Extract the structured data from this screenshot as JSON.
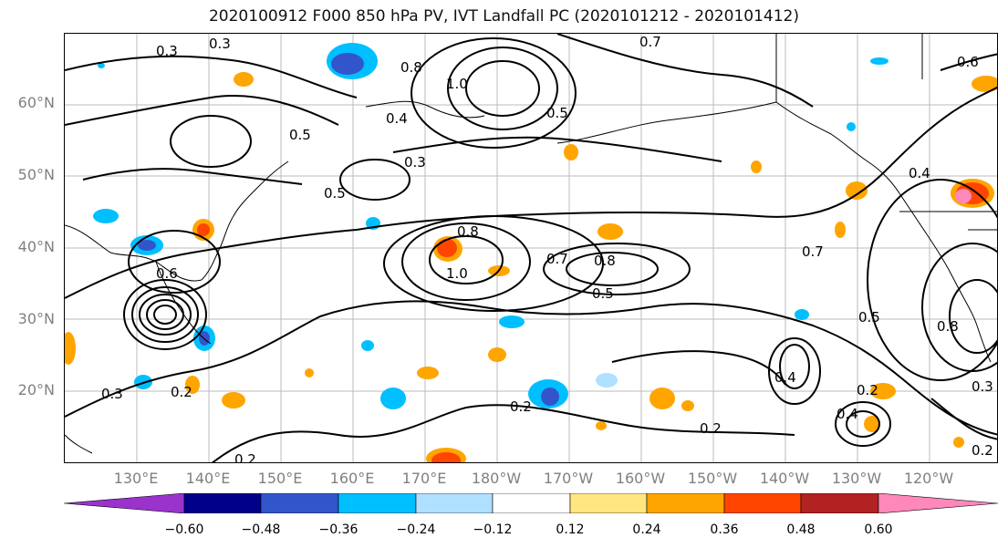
{
  "title": "2020100912 F000 850 hPa PV, IVT Landfall PC (2020101212 - 2020101412)",
  "latitude_labels": [
    "60°N",
    "50°N",
    "40°N",
    "30°N",
    "20°N"
  ],
  "longitude_labels": [
    "130°E",
    "140°E",
    "150°E",
    "160°E",
    "170°E",
    "180°W",
    "170°W",
    "160°W",
    "150°W",
    "140°W",
    "130°W",
    "120°W"
  ],
  "contour_labels": [
    "0.3",
    "0.3",
    "0.8",
    "1.0",
    "0.7",
    "0.6",
    "0.5",
    "0.5",
    "0.4",
    "0.3",
    "0.5",
    "0.4",
    "0.8",
    "1.0",
    "0.8",
    "0.7",
    "0.5",
    "0.7",
    "0.8",
    "0.5",
    "0.6",
    "0.2",
    "0.2",
    "0.3",
    "0.4",
    "0.2",
    "0.4",
    "0.3",
    "0.2",
    "0.2",
    "0.2"
  ],
  "colorbar": {
    "colors": [
      "#9933cc",
      "#00008b",
      "#3355cc",
      "#00bfff",
      "#b0e0ff",
      "#ffffff",
      "#ffe680",
      "#ffa500",
      "#ff4500",
      "#b22222",
      "#ff88bb"
    ],
    "tick_labels": [
      "−0.60",
      "−0.48",
      "−0.36",
      "−0.24",
      "−0.12",
      "0.12",
      "0.24",
      "0.36",
      "0.48",
      "0.60"
    ]
  }
}
